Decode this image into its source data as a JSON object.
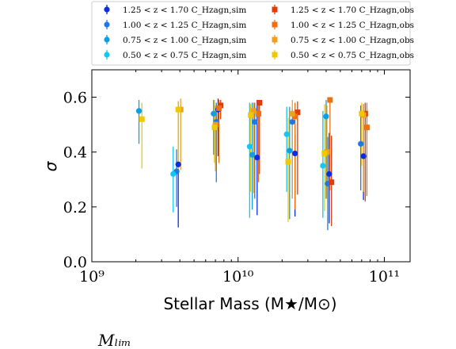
{
  "chart_data": {
    "type": "scatter",
    "ylabel": "σ",
    "xlabel": "Stellar Mass (M★/M⊙)",
    "x_scale": "log",
    "xlim": [
      1000000000,
      150000000000
    ],
    "ylim": [
      0.0,
      0.7
    ],
    "x_tick_labels": [
      "10⁹",
      "10¹⁰",
      "10¹¹"
    ],
    "y_tick_labels": [
      "0.0",
      "0.2",
      "0.4",
      "0.6"
    ],
    "footnote": "Mₗᵢₘ",
    "legend_position": "top (outside, above plot)",
    "series": [
      {
        "name": "1.25 < z < 1.70 C_Hzagn,sim",
        "color": "#0b2de0",
        "marker": "circle",
        "x": [
          3900000000.0,
          7300000000.0,
          13500000000.0,
          24500000000.0,
          42000000000.0,
          72000000000.0
        ],
        "y": [
          0.355,
          0.555,
          0.38,
          0.395,
          0.32,
          0.385
        ],
        "yerr_lo": [
          0.23,
          0.17,
          0.21,
          0.23,
          0.18,
          0.16
        ],
        "yerr_hi": [
          0.23,
          0.04,
          0.21,
          0.07,
          0.15,
          0.19
        ]
      },
      {
        "name": "1.00 < z < 1.25 C_Hzagn,sim",
        "color": "#1f78e8",
        "marker": "circle",
        "x": [
          3800000000.0,
          7100000000.0,
          13000000000.0,
          23500000000.0,
          41000000000.0,
          69000000000.0
        ],
        "y": [
          0.33,
          0.51,
          0.51,
          0.51,
          0.285,
          0.43
        ],
        "yerr_lo": [
          0.13,
          0.22,
          0.28,
          0.28,
          0.17,
          0.17
        ],
        "yerr_hi": [
          0.08,
          0.07,
          0.07,
          0.05,
          0.17,
          0.14
        ]
      },
      {
        "name": "0.75 < z < 1.00 C_Hzagn,sim",
        "color": "#0e9ee3",
        "marker": "circle",
        "x": [
          2100000000.0,
          6800000000.0,
          12500000000.0,
          22500000000.0,
          40000000000.0
        ],
        "y": [
          0.55,
          0.54,
          0.39,
          0.405,
          0.53
        ],
        "yerr_lo": [
          0.12,
          0.15,
          0.2,
          0.25,
          0.3
        ],
        "yerr_hi": [
          0.04,
          0.05,
          0.19,
          0.16,
          0.06
        ]
      },
      {
        "name": "0.50 < z < 0.75 C_Hzagn,sim",
        "color": "#12c8f0",
        "marker": "circle",
        "x": [
          3600000000.0,
          12000000000.0,
          21500000000.0,
          38000000000.0
        ],
        "y": [
          0.32,
          0.42,
          0.465,
          0.35
        ],
        "yerr_lo": [
          0.14,
          0.26,
          0.21,
          0.19
        ],
        "yerr_hi": [
          0.1,
          0.16,
          0.1,
          0.2
        ]
      },
      {
        "name": "1.25 < z < 1.70 C_Hzagn,obs",
        "color": "#e03c0a",
        "marker": "square",
        "x": [
          7600000000.0,
          14000000000.0,
          25500000000.0,
          43500000000.0,
          74000000000.0
        ],
        "y": [
          0.57,
          0.58,
          0.545,
          0.29,
          0.54
        ],
        "yerr_lo": [
          0.05,
          0.26,
          0.3,
          0.16,
          0.32
        ],
        "yerr_hi": [
          0.02,
          0.01,
          0.04,
          0.17,
          0.04
        ]
      },
      {
        "name": "1.00 < z < 1.25 C_Hzagn,obs",
        "color": "#f07010",
        "marker": "square",
        "x": [
          7400000000.0,
          13800000000.0,
          24500000000.0,
          42500000000.0,
          76000000000.0
        ],
        "y": [
          0.56,
          0.54,
          0.53,
          0.59,
          0.49
        ],
        "yerr_lo": [
          0.2,
          0.25,
          0.34,
          0.33,
          0.25
        ],
        "yerr_hi": [
          0.03,
          0.05,
          0.05,
          0.01,
          0.09
        ]
      },
      {
        "name": "0.75 < z < 1.00 C_Hzagn,obs",
        "color": "#f0a020",
        "marker": "square",
        "x": [
          4050000000.0,
          7000000000.0,
          12800000000.0,
          23500000000.0,
          40500000000.0,
          72000000000.0
        ],
        "y": [
          0.555,
          0.5,
          0.55,
          0.54,
          0.4,
          0.535
        ],
        "yerr_lo": [
          0.22,
          0.17,
          0.3,
          0.31,
          0.17,
          0.28
        ],
        "yerr_hi": [
          0.04,
          0.07,
          0.03,
          0.05,
          0.17,
          0.04
        ]
      },
      {
        "name": "0.50 < z < 0.75 C_Hzagn,obs",
        "color": "#f0c800",
        "marker": "square",
        "x": [
          2200000000.0,
          3900000000.0,
          6900000000.0,
          12200000000.0,
          22000000000.0,
          39000000000.0,
          70000000000.0
        ],
        "y": [
          0.52,
          0.555,
          0.49,
          0.535,
          0.365,
          0.395,
          0.54
        ],
        "yerr_lo": [
          0.18,
          0.22,
          0.13,
          0.28,
          0.22,
          0.21,
          0.19
        ],
        "yerr_hi": [
          0.06,
          0.03,
          0.1,
          0.04,
          0.16,
          0.18,
          0.04
        ]
      }
    ]
  }
}
